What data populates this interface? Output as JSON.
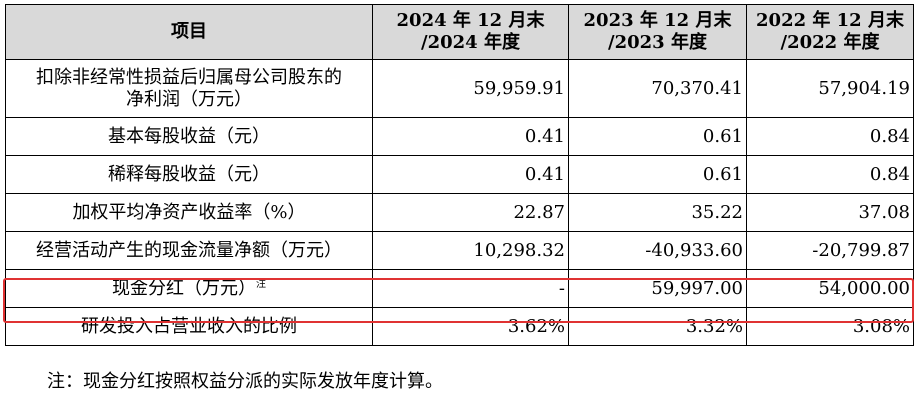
{
  "table": {
    "headers": [
      {
        "line1": "项目",
        "line2": ""
      },
      {
        "line1": "2024 年 12 月末",
        "line2": "/2024 年度"
      },
      {
        "line1": "2023 年 12 月末",
        "line2": "/2023 年度"
      },
      {
        "line1": "2022 年 12 月末",
        "line2": "/2022 年度"
      }
    ],
    "rows": [
      {
        "label_line1": "扣除非经常性损益后归属母公司股东的",
        "label_line2": "净利润（万元）",
        "values": [
          "59,959.91",
          "70,370.41",
          "57,904.19"
        ]
      },
      {
        "label": "基本每股收益（元）",
        "values": [
          "0.41",
          "0.61",
          "0.84"
        ]
      },
      {
        "label": "稀释每股收益（元）",
        "values": [
          "0.41",
          "0.61",
          "0.84"
        ]
      },
      {
        "label": "加权平均净资产收益率（%）",
        "values": [
          "22.87",
          "35.22",
          "37.08"
        ]
      },
      {
        "label": "经营活动产生的现金流量净额（万元）",
        "values": [
          "10,298.32",
          "-40,933.60",
          "-20,799.87"
        ]
      },
      {
        "label": "现金分红（万元）",
        "sup": "注",
        "values": [
          "-",
          "59,997.00",
          "54,000.00"
        ]
      },
      {
        "label": "研发投入占营业收入的比例",
        "values": [
          "3.62%",
          "3.32%",
          "3.08%"
        ]
      }
    ]
  },
  "note": "注：现金分红按照权益分派的实际发放年度计算。",
  "colors": {
    "header_bg": "#d9d9d9",
    "highlight_border": "#e03232"
  }
}
